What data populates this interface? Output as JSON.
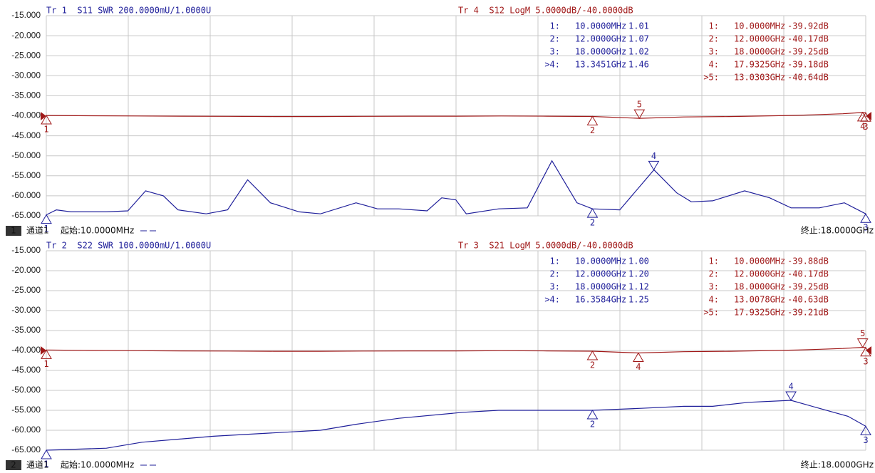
{
  "chart_data": [
    {
      "type": "line",
      "channel": "1",
      "channel_label": "通道1",
      "start": "起始:10.0000MHz",
      "stop": "终止:18.0000GHz",
      "xlim": [
        0.01,
        18
      ],
      "ylim": [
        -65,
        -15
      ],
      "y2lim": [
        1,
        3
      ],
      "grid": true,
      "yticks": [
        {
          "value": -15,
          "label": "-15.000"
        },
        {
          "value": -20,
          "label": "-20.000"
        },
        {
          "value": -25,
          "label": "-25.000"
        },
        {
          "value": -30,
          "label": "-30.000"
        },
        {
          "value": -35,
          "label": "-35.000"
        },
        {
          "value": -40,
          "label": "-40.000"
        },
        {
          "value": -45,
          "label": "-45.000"
        },
        {
          "value": -50,
          "label": "-50.000"
        },
        {
          "value": -55,
          "label": "-55.000"
        },
        {
          "value": -60,
          "label": "-60.000"
        },
        {
          "value": -65,
          "label": "-65.000"
        }
      ],
      "series": [
        {
          "name": "Tr 1  S11 SWR 200.0000mU/1.0000U",
          "color": "#1f1f9a",
          "axis": "y2",
          "x": [
            0.01,
            0.23,
            0.55,
            1.33,
            1.8,
            2.19,
            2.58,
            2.9,
            3.52,
            3.99,
            4.43,
            4.93,
            5.56,
            6.03,
            6.81,
            7.28,
            7.75,
            8.37,
            8.69,
            9.0,
            9.23,
            9.94,
            10.57,
            11.11,
            11.66,
            12.0,
            12.6,
            13.35,
            13.85,
            14.17,
            14.64,
            15.34,
            15.89,
            16.36,
            16.98,
            17.53,
            18.0
          ],
          "values": [
            1.01,
            1.06,
            1.04,
            1.04,
            1.05,
            1.25,
            1.2,
            1.06,
            1.02,
            1.06,
            1.36,
            1.13,
            1.04,
            1.02,
            1.13,
            1.07,
            1.07,
            1.05,
            1.18,
            1.16,
            1.02,
            1.07,
            1.08,
            1.55,
            1.13,
            1.07,
            1.06,
            1.46,
            1.23,
            1.14,
            1.15,
            1.25,
            1.18,
            1.08,
            1.08,
            1.13,
            1.02
          ],
          "markers": [
            {
              "label": "1",
              "table_label": "1:",
              "freq": "10.0000MHz",
              "x": 0.01,
              "value": 1.01,
              "value_label": "1.01",
              "position": "below"
            },
            {
              "label": "2",
              "table_label": "2:",
              "freq": "12.0000GHz",
              "x": 12,
              "value": 1.07,
              "value_label": "1.07",
              "position": "below"
            },
            {
              "label": "3",
              "table_label": "3:",
              "freq": "18.0000GHz",
              "x": 18,
              "value": 1.02,
              "value_label": "1.02",
              "position": "below"
            },
            {
              "label": "4",
              "table_label": ">4:",
              "freq": "13.3451GHz",
              "x": 13.3451,
              "value": 1.46,
              "value_label": "1.46",
              "position": "above"
            }
          ]
        },
        {
          "name": "Tr 4  S12 LogM 5.0000dB/-40.0000dB",
          "color": "#a01818",
          "x": [
            0.01,
            1,
            2,
            3,
            4,
            5,
            6,
            7,
            8,
            9,
            10,
            11,
            12,
            13.0303,
            14,
            15,
            16,
            16.5,
            17,
            17.5,
            17.9325,
            18
          ],
          "values": [
            -39.92,
            -40.0,
            -40.05,
            -40.1,
            -40.15,
            -40.2,
            -40.2,
            -40.15,
            -40.1,
            -40.1,
            -40.05,
            -40.1,
            -40.17,
            -40.64,
            -40.3,
            -40.2,
            -40.0,
            -39.9,
            -39.7,
            -39.5,
            -39.18,
            -39.25
          ],
          "markers": [
            {
              "label": "1",
              "table_label": "1:",
              "freq": "10.0000MHz",
              "x": 0.01,
              "value": -39.92,
              "value_label": "-39.92dB",
              "position": "below"
            },
            {
              "label": "2",
              "table_label": "2:",
              "freq": "12.0000GHz",
              "x": 12,
              "value": -40.17,
              "value_label": "-40.17dB",
              "position": "below"
            },
            {
              "label": "3",
              "table_label": "3:",
              "freq": "18.0000GHz",
              "x": 18,
              "value": -39.25,
              "value_label": "-39.25dB",
              "position": "below"
            },
            {
              "label": "4",
              "table_label": "4:",
              "freq": "17.9325GHz",
              "x": 17.9325,
              "value": -39.18,
              "value_label": "-39.18dB",
              "position": "below"
            },
            {
              "label": "5",
              "table_label": ">5:",
              "freq": "13.0303GHz",
              "x": 13.0303,
              "value": -40.64,
              "value_label": "-40.64dB",
              "position": "above"
            }
          ]
        }
      ]
    },
    {
      "type": "line",
      "channel": "2",
      "channel_label": "通道1",
      "start": "起始:10.0000MHz",
      "stop": "终止:18.0000GHz",
      "xlim": [
        0.01,
        18
      ],
      "ylim": [
        -65,
        -15
      ],
      "y2lim": [
        1,
        2
      ],
      "grid": true,
      "yticks": [
        {
          "value": -15,
          "label": "-15.000"
        },
        {
          "value": -20,
          "label": "-20.000"
        },
        {
          "value": -25,
          "label": "-25.000"
        },
        {
          "value": -30,
          "label": "-30.000"
        },
        {
          "value": -35,
          "label": "-35.000"
        },
        {
          "value": -40,
          "label": "-40.000"
        },
        {
          "value": -45,
          "label": "-45.000"
        },
        {
          "value": -50,
          "label": "-50.000"
        },
        {
          "value": -55,
          "label": "-55.000"
        },
        {
          "value": -60,
          "label": "-60.000"
        },
        {
          "value": -65,
          "label": "-65.000"
        }
      ],
      "series": [
        {
          "name": "Tr 2  S22 SWR 100.0000mU/1.0000U",
          "color": "#1f1f9a",
          "axis": "y2",
          "x": [
            0.01,
            1.33,
            2.11,
            3.68,
            5.24,
            6.03,
            6.81,
            7.75,
            9.16,
            9.94,
            10.88,
            12.0,
            13.07,
            14.01,
            14.64,
            15.42,
            16.3584,
            16.98,
            17.61,
            18.0
          ],
          "values": [
            1.0,
            1.01,
            1.04,
            1.07,
            1.09,
            1.1,
            1.13,
            1.16,
            1.19,
            1.2,
            1.2,
            1.2,
            1.21,
            1.22,
            1.22,
            1.24,
            1.25,
            1.21,
            1.17,
            1.12
          ],
          "markers": [
            {
              "label": "1",
              "table_label": "1:",
              "freq": "10.0000MHz",
              "x": 0.01,
              "value": 1.0,
              "value_label": "1.00",
              "position": "below"
            },
            {
              "label": "2",
              "table_label": "2:",
              "freq": "12.0000GHz",
              "x": 12,
              "value": 1.2,
              "value_label": "1.20",
              "position": "below"
            },
            {
              "label": "3",
              "table_label": "3:",
              "freq": "18.0000GHz",
              "x": 18,
              "value": 1.12,
              "value_label": "1.12",
              "position": "below"
            },
            {
              "label": "4",
              "table_label": ">4:",
              "freq": "16.3584GHz",
              "x": 16.3584,
              "value": 1.25,
              "value_label": "1.25",
              "position": "above"
            }
          ]
        },
        {
          "name": "Tr 3  S21 LogM 5.0000dB/-40.0000dB",
          "color": "#a01818",
          "x": [
            0.01,
            1,
            2,
            3,
            4,
            5,
            6,
            7,
            8,
            9,
            10,
            11,
            12,
            13.0078,
            14,
            15,
            16,
            16.5,
            17,
            17.5,
            17.9325,
            18
          ],
          "values": [
            -39.88,
            -40.0,
            -40.05,
            -40.1,
            -40.15,
            -40.2,
            -40.2,
            -40.15,
            -40.1,
            -40.1,
            -40.05,
            -40.1,
            -40.17,
            -40.63,
            -40.3,
            -40.2,
            -40.0,
            -39.9,
            -39.7,
            -39.5,
            -39.21,
            -39.25
          ],
          "markers": [
            {
              "label": "1",
              "table_label": "1:",
              "freq": "10.0000MHz",
              "x": 0.01,
              "value": -39.88,
              "value_label": "-39.88dB",
              "position": "below"
            },
            {
              "label": "2",
              "table_label": "2:",
              "freq": "12.0000GHz",
              "x": 12,
              "value": -40.17,
              "value_label": "-40.17dB",
              "position": "below"
            },
            {
              "label": "3",
              "table_label": "3:",
              "freq": "18.0000GHz",
              "x": 18,
              "value": -39.25,
              "value_label": "-39.25dB",
              "position": "below"
            },
            {
              "label": "4",
              "table_label": "4:",
              "freq": "13.0078GHz",
              "x": 13.0078,
              "value": -40.63,
              "value_label": "-40.63dB",
              "position": "below"
            },
            {
              "label": "5",
              "table_label": ">5:",
              "freq": "17.9325GHz",
              "x": 17.9325,
              "value": -39.21,
              "value_label": "-39.21dB",
              "position": "above"
            }
          ]
        }
      ]
    }
  ]
}
